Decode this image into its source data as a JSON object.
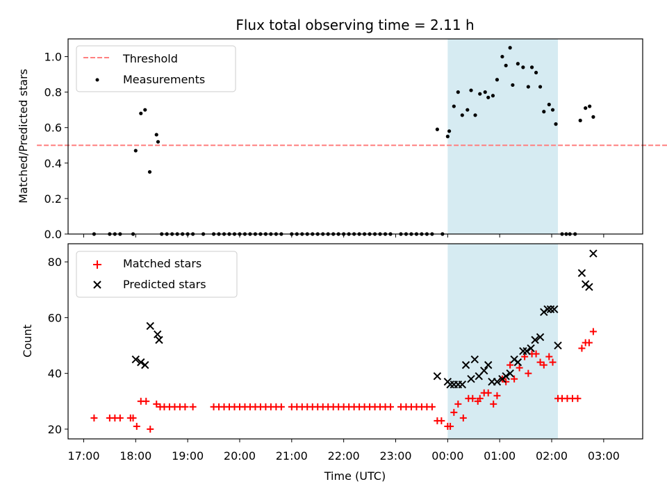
{
  "chart_data": {
    "type": "scatter",
    "title": "Flux total observing time = 2.11 h",
    "xlabel": "Time (UTC)",
    "x_ticks": [
      "17:00",
      "18:00",
      "19:00",
      "20:00",
      "21:00",
      "22:00",
      "23:00",
      "00:00",
      "01:00",
      "02:00",
      "03:00"
    ],
    "x_range_hours": [
      -0.3,
      10.75
    ],
    "highlight_span_hours": [
      7.0,
      9.12
    ],
    "highlight_color": "#add8e6",
    "top": {
      "ylabel": "Matched/Predicted stars",
      "ylim": [
        0.0,
        1.1
      ],
      "yticks": [
        "0.0",
        "0.2",
        "0.4",
        "0.6",
        "0.8",
        "1.0"
      ],
      "legend_position": "upper left",
      "threshold": {
        "name": "Threshold",
        "value": 0.5,
        "x_range_hours": [
          -0.9,
          11.78
        ],
        "color": "#ff7f7f"
      },
      "measurements": {
        "name": "Measurements",
        "color": "#000000",
        "points": [
          [
            0.2,
            0
          ],
          [
            0.5,
            0
          ],
          [
            0.6,
            0
          ],
          [
            0.7,
            0
          ],
          [
            0.95,
            0
          ],
          [
            1.0,
            0.47
          ],
          [
            1.1,
            0.68
          ],
          [
            1.18,
            0.7
          ],
          [
            1.27,
            0.35
          ],
          [
            1.4,
            0.56
          ],
          [
            1.43,
            0.52
          ],
          [
            1.5,
            0
          ],
          [
            1.6,
            0
          ],
          [
            1.7,
            0
          ],
          [
            1.8,
            0
          ],
          [
            1.9,
            0
          ],
          [
            2.0,
            0
          ],
          [
            2.1,
            0
          ],
          [
            2.3,
            0
          ],
          [
            2.5,
            0
          ],
          [
            2.6,
            0
          ],
          [
            2.7,
            0
          ],
          [
            2.8,
            0
          ],
          [
            2.9,
            0
          ],
          [
            3.0,
            0
          ],
          [
            3.1,
            0
          ],
          [
            3.2,
            0
          ],
          [
            3.3,
            0
          ],
          [
            3.4,
            0
          ],
          [
            3.5,
            0
          ],
          [
            3.6,
            0
          ],
          [
            3.7,
            0
          ],
          [
            3.8,
            0
          ],
          [
            4.0,
            0
          ],
          [
            4.1,
            0
          ],
          [
            4.2,
            0
          ],
          [
            4.3,
            0
          ],
          [
            4.4,
            0
          ],
          [
            4.5,
            0
          ],
          [
            4.6,
            0
          ],
          [
            4.7,
            0
          ],
          [
            4.8,
            0
          ],
          [
            4.9,
            0
          ],
          [
            5.0,
            0
          ],
          [
            5.1,
            0
          ],
          [
            5.2,
            0
          ],
          [
            5.3,
            0
          ],
          [
            5.4,
            0
          ],
          [
            5.5,
            0
          ],
          [
            5.6,
            0
          ],
          [
            5.7,
            0
          ],
          [
            5.8,
            0
          ],
          [
            5.9,
            0
          ],
          [
            6.1,
            0
          ],
          [
            6.2,
            0
          ],
          [
            6.3,
            0
          ],
          [
            6.4,
            0
          ],
          [
            6.5,
            0
          ],
          [
            6.6,
            0
          ],
          [
            6.7,
            0
          ],
          [
            6.9,
            0
          ],
          [
            6.8,
            0.59
          ],
          [
            7.0,
            0.55
          ],
          [
            7.03,
            0.58
          ],
          [
            7.12,
            0.72
          ],
          [
            7.2,
            0.8
          ],
          [
            7.28,
            0.67
          ],
          [
            7.38,
            0.7
          ],
          [
            7.45,
            0.81
          ],
          [
            7.53,
            0.67
          ],
          [
            7.62,
            0.79
          ],
          [
            7.72,
            0.8
          ],
          [
            7.78,
            0.77
          ],
          [
            7.87,
            0.78
          ],
          [
            7.95,
            0.87
          ],
          [
            8.05,
            1.0
          ],
          [
            8.12,
            0.95
          ],
          [
            8.2,
            1.05
          ],
          [
            8.25,
            0.84
          ],
          [
            8.35,
            0.96
          ],
          [
            8.45,
            0.94
          ],
          [
            8.55,
            0.83
          ],
          [
            8.62,
            0.94
          ],
          [
            8.7,
            0.91
          ],
          [
            8.78,
            0.83
          ],
          [
            8.85,
            0.69
          ],
          [
            8.95,
            0.73
          ],
          [
            9.02,
            0.7
          ],
          [
            9.08,
            0.62
          ],
          [
            9.2,
            0
          ],
          [
            9.28,
            0
          ],
          [
            9.35,
            0
          ],
          [
            9.45,
            0
          ],
          [
            9.55,
            0.64
          ],
          [
            9.65,
            0.71
          ],
          [
            9.73,
            0.72
          ],
          [
            9.8,
            0.66
          ]
        ]
      }
    },
    "bottom": {
      "ylabel": "Count",
      "ylim": [
        16.5,
        86.5
      ],
      "yticks": [
        "20",
        "40",
        "60",
        "80"
      ],
      "legend_position": "upper left",
      "series": [
        {
          "name": "Matched stars",
          "marker": "plus",
          "color": "#ff0000",
          "points": [
            [
              0.2,
              24
            ],
            [
              0.5,
              24
            ],
            [
              0.6,
              24
            ],
            [
              0.7,
              24
            ],
            [
              0.9,
              24
            ],
            [
              0.95,
              24
            ],
            [
              1.02,
              21
            ],
            [
              1.1,
              30
            ],
            [
              1.2,
              30
            ],
            [
              1.28,
              20
            ],
            [
              1.4,
              29
            ],
            [
              1.47,
              28
            ],
            [
              1.55,
              28
            ],
            [
              1.65,
              28
            ],
            [
              1.75,
              28
            ],
            [
              1.85,
              28
            ],
            [
              1.95,
              28
            ],
            [
              2.1,
              28
            ],
            [
              2.5,
              28
            ],
            [
              2.6,
              28
            ],
            [
              2.7,
              28
            ],
            [
              2.8,
              28
            ],
            [
              2.9,
              28
            ],
            [
              3.0,
              28
            ],
            [
              3.1,
              28
            ],
            [
              3.2,
              28
            ],
            [
              3.3,
              28
            ],
            [
              3.4,
              28
            ],
            [
              3.5,
              28
            ],
            [
              3.6,
              28
            ],
            [
              3.7,
              28
            ],
            [
              3.8,
              28
            ],
            [
              4.0,
              28
            ],
            [
              4.1,
              28
            ],
            [
              4.2,
              28
            ],
            [
              4.3,
              28
            ],
            [
              4.4,
              28
            ],
            [
              4.5,
              28
            ],
            [
              4.6,
              28
            ],
            [
              4.7,
              28
            ],
            [
              4.8,
              28
            ],
            [
              4.9,
              28
            ],
            [
              5.0,
              28
            ],
            [
              5.1,
              28
            ],
            [
              5.2,
              28
            ],
            [
              5.3,
              28
            ],
            [
              5.4,
              28
            ],
            [
              5.5,
              28
            ],
            [
              5.6,
              28
            ],
            [
              5.7,
              28
            ],
            [
              5.8,
              28
            ],
            [
              5.9,
              28
            ],
            [
              6.1,
              28
            ],
            [
              6.2,
              28
            ],
            [
              6.3,
              28
            ],
            [
              6.4,
              28
            ],
            [
              6.5,
              28
            ],
            [
              6.6,
              28
            ],
            [
              6.7,
              28
            ],
            [
              6.8,
              23
            ],
            [
              6.88,
              23
            ],
            [
              7.0,
              21
            ],
            [
              7.05,
              21
            ],
            [
              7.12,
              26
            ],
            [
              7.2,
              29
            ],
            [
              7.3,
              24
            ],
            [
              7.4,
              31
            ],
            [
              7.48,
              31
            ],
            [
              7.58,
              30
            ],
            [
              7.62,
              31
            ],
            [
              7.7,
              33
            ],
            [
              7.78,
              33
            ],
            [
              7.88,
              29
            ],
            [
              7.95,
              32
            ],
            [
              8.05,
              38
            ],
            [
              8.12,
              37
            ],
            [
              8.2,
              43
            ],
            [
              8.28,
              38
            ],
            [
              8.38,
              42
            ],
            [
              8.48,
              46
            ],
            [
              8.55,
              40
            ],
            [
              8.62,
              47
            ],
            [
              8.7,
              47
            ],
            [
              8.78,
              44
            ],
            [
              8.85,
              43
            ],
            [
              8.95,
              46
            ],
            [
              9.02,
              44
            ],
            [
              9.12,
              31
            ],
            [
              9.2,
              31
            ],
            [
              9.3,
              31
            ],
            [
              9.4,
              31
            ],
            [
              9.5,
              31
            ],
            [
              9.58,
              49
            ],
            [
              9.65,
              51
            ],
            [
              9.72,
              51
            ],
            [
              9.8,
              55
            ]
          ]
        },
        {
          "name": "Predicted stars",
          "marker": "x",
          "color": "#000000",
          "points": [
            [
              1.0,
              45
            ],
            [
              1.1,
              44
            ],
            [
              1.18,
              43
            ],
            [
              1.28,
              57
            ],
            [
              1.42,
              54
            ],
            [
              1.45,
              52
            ],
            [
              6.8,
              39
            ],
            [
              7.0,
              37
            ],
            [
              7.05,
              36
            ],
            [
              7.12,
              36
            ],
            [
              7.2,
              36
            ],
            [
              7.28,
              36
            ],
            [
              7.35,
              43
            ],
            [
              7.45,
              38
            ],
            [
              7.52,
              45
            ],
            [
              7.6,
              39
            ],
            [
              7.7,
              41
            ],
            [
              7.78,
              43
            ],
            [
              7.85,
              37
            ],
            [
              7.95,
              37
            ],
            [
              8.05,
              38
            ],
            [
              8.12,
              39
            ],
            [
              8.2,
              40
            ],
            [
              8.28,
              45
            ],
            [
              8.35,
              44
            ],
            [
              8.45,
              48
            ],
            [
              8.52,
              48
            ],
            [
              8.6,
              49
            ],
            [
              8.68,
              52
            ],
            [
              8.78,
              53
            ],
            [
              8.85,
              62
            ],
            [
              8.92,
              63
            ],
            [
              8.98,
              63
            ],
            [
              9.05,
              63
            ],
            [
              9.12,
              50
            ],
            [
              9.58,
              76
            ],
            [
              9.65,
              72
            ],
            [
              9.72,
              71
            ],
            [
              9.8,
              83
            ]
          ]
        }
      ]
    }
  }
}
